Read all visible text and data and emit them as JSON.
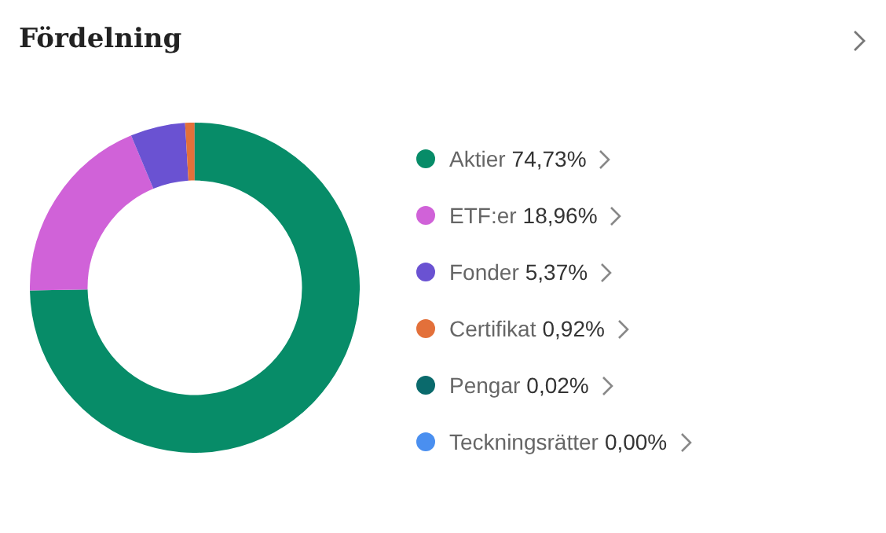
{
  "chart_data": {
    "type": "donut",
    "title": "Fördelning",
    "categories": [
      "Aktier",
      "ETF:er",
      "Fonder",
      "Certifikat",
      "Pengar",
      "Teckningsrätter"
    ],
    "values": [
      74.73,
      18.96,
      5.37,
      0.92,
      0.02,
      0.0
    ],
    "value_labels": [
      "74,73%",
      "18,96%",
      "5,37%",
      "0,92%",
      "0,02%",
      "0,00%"
    ],
    "colors": [
      "#078c68",
      "#d062d8",
      "#6a52d2",
      "#e3703a",
      "#0a6a6c",
      "#4a8ff0"
    ],
    "legend": "right"
  }
}
